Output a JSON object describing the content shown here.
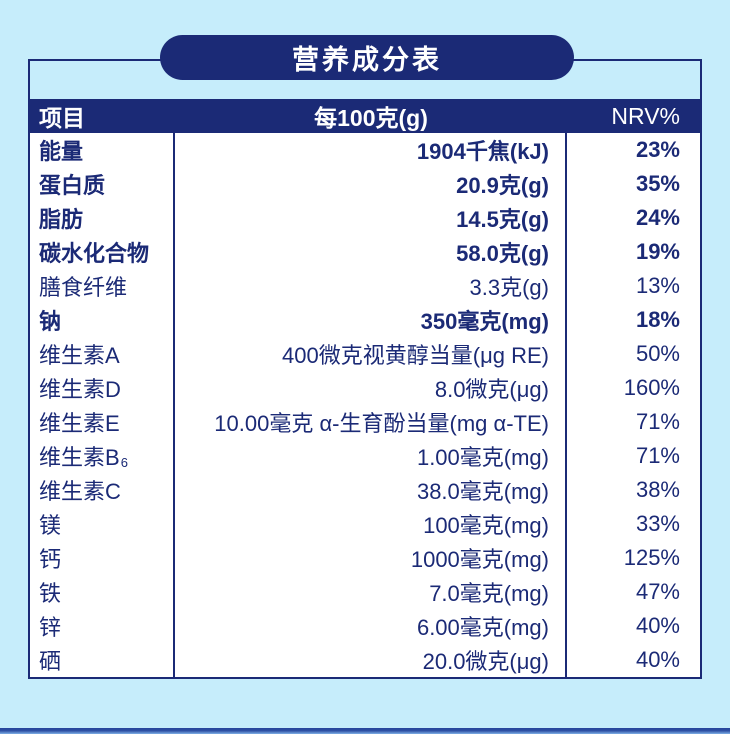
{
  "colors": {
    "navy": "#1b2a76",
    "background": "#c6edfb",
    "header_text": "#ffffff",
    "bottom_rule_dark": "#27459a",
    "bottom_rule_light": "#7fb0e6"
  },
  "title": "营养成分表",
  "table": {
    "headers": {
      "item": "项目",
      "per100g": "每100克(g)",
      "nrv": "NRV%"
    },
    "rows": [
      {
        "label": "能量",
        "value": "1904千焦(kJ)",
        "nrv": "23%",
        "bold": true
      },
      {
        "label": "蛋白质",
        "value": "20.9克(g)",
        "nrv": "35%",
        "bold": true
      },
      {
        "label": "脂肪",
        "value": "14.5克(g)",
        "nrv": "24%",
        "bold": true
      },
      {
        "label": "碳水化合物",
        "value": "58.0克(g)",
        "nrv": "19%",
        "bold": true
      },
      {
        "label": "膳食纤维",
        "value": "3.3克(g)",
        "nrv": "13%",
        "bold": false
      },
      {
        "label": "钠",
        "value": "350毫克(mg)",
        "nrv": "18%",
        "bold": true
      },
      {
        "label": "维生素A",
        "value": "400微克视黄醇当量(μg RE)",
        "nrv": "50%",
        "bold": false
      },
      {
        "label": "维生素D",
        "value": "8.0微克(μg)",
        "nrv": "160%",
        "bold": false
      },
      {
        "label": "维生素E",
        "value": "10.00毫克 α-生育酚当量(mg α-TE)",
        "nrv": "71%",
        "bold": false
      },
      {
        "label": "维生素B",
        "label_sub": "6",
        "value": "1.00毫克(mg)",
        "nrv": "71%",
        "bold": false
      },
      {
        "label": "维生素C",
        "value": "38.0毫克(mg)",
        "nrv": "38%",
        "bold": false
      },
      {
        "label": "镁",
        "value": "100毫克(mg)",
        "nrv": "33%",
        "bold": false
      },
      {
        "label": "钙",
        "value": "1000毫克(mg)",
        "nrv": "125%",
        "bold": false
      },
      {
        "label": "铁",
        "value": "7.0毫克(mg)",
        "nrv": "47%",
        "bold": false
      },
      {
        "label": "锌",
        "value": "6.00毫克(mg)",
        "nrv": "40%",
        "bold": false
      },
      {
        "label": "硒",
        "value": "20.0微克(μg)",
        "nrv": "40%",
        "bold": false
      }
    ]
  }
}
